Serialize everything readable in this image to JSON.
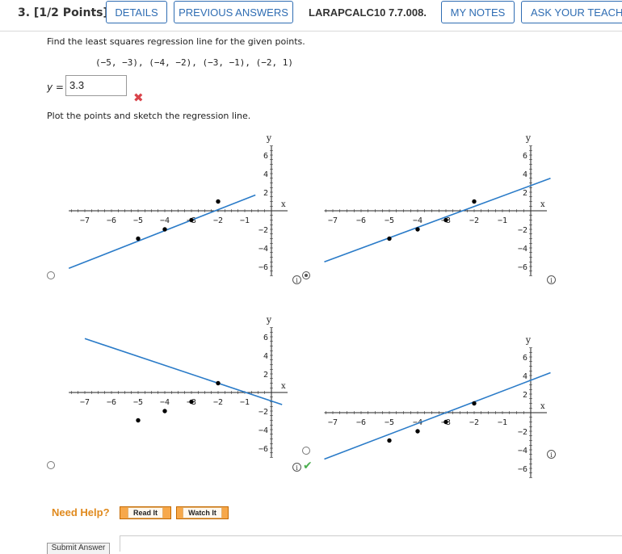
{
  "header": {
    "question_title": "3. [1/2 Points]",
    "details_label": "DETAILS",
    "previous_answers_label": "PREVIOUS ANSWERS",
    "problem_code": "LARAPCALC10 7.7.008.",
    "my_notes_label": "MY NOTES",
    "ask_teacher_label": "ASK YOUR TEACHE"
  },
  "question": {
    "prompt": "Find the least squares regression line for the given points.",
    "points_text": "(−5, −3), (−4, −2), (−3, −1), (−2, 1)",
    "answer_label": "y =",
    "answer_value": "3.3",
    "plot_prompt": "Plot the points and sketch the regression line."
  },
  "help": {
    "need_help_label": "Need Help?",
    "read_it_label": "Read It",
    "watch_it_label": "Watch It"
  },
  "footer": {
    "submit_label": "Submit Answer"
  },
  "graph_common": {
    "x_axis_name": "x",
    "y_axis_name": "y",
    "info_glyph": "i"
  },
  "chart_data": [
    {
      "type": "scatter",
      "id": "top-left",
      "x_ticks": [
        -7,
        -6,
        -5,
        -4,
        -3,
        -2,
        -1
      ],
      "y_ticks": [
        -6,
        -4,
        -2,
        2,
        4,
        6
      ],
      "points": [
        [
          -5,
          -3
        ],
        [
          -4,
          -2
        ],
        [
          -3,
          -1
        ],
        [
          -2,
          1
        ]
      ],
      "line": [
        [
          -7.6,
          -6.2
        ],
        [
          -0.6,
          1.7
        ]
      ],
      "xlim": [
        -7.6,
        0
      ],
      "ylim": [
        -7,
        7
      ],
      "selected": false
    },
    {
      "type": "scatter",
      "id": "top-right",
      "x_ticks": [
        -7,
        -6,
        -5,
        -4,
        -3,
        -2,
        -1
      ],
      "y_ticks": [
        -6,
        -4,
        -2,
        2,
        4,
        6
      ],
      "points": [
        [
          -5,
          -3
        ],
        [
          -4,
          -2
        ],
        [
          -3,
          -1
        ],
        [
          -2,
          1
        ]
      ],
      "line": [
        [
          -7.3,
          -5.5
        ],
        [
          0.7,
          3.5
        ]
      ],
      "xlim": [
        -7.3,
        0
      ],
      "ylim": [
        -7,
        7
      ],
      "selected": true
    },
    {
      "type": "scatter",
      "id": "bottom-left",
      "x_ticks": [
        -7,
        -6,
        -5,
        -4,
        -3,
        -2,
        -1
      ],
      "y_ticks": [
        -6,
        -4,
        -2,
        2,
        4,
        6
      ],
      "points": [
        [
          -5,
          -3
        ],
        [
          -4,
          -2
        ],
        [
          -3,
          -1
        ],
        [
          -2,
          1
        ]
      ],
      "line": [
        [
          -7,
          5.8
        ],
        [
          0.4,
          -1.3
        ]
      ],
      "xlim": [
        -7.6,
        0
      ],
      "ylim": [
        -7,
        7
      ],
      "selected": false
    },
    {
      "type": "scatter",
      "id": "bottom-right",
      "x_ticks": [
        -7,
        -6,
        -5,
        -4,
        -3,
        -2,
        -1
      ],
      "y_ticks": [
        -6,
        -4,
        -2,
        2,
        4,
        6
      ],
      "points": [
        [
          -5,
          -3
        ],
        [
          -4,
          -2
        ],
        [
          -3,
          -1
        ],
        [
          -2,
          1
        ]
      ],
      "line": [
        [
          -7.3,
          -5.0
        ],
        [
          0.7,
          4.3
        ]
      ],
      "xlim": [
        -7.3,
        0
      ],
      "ylim": [
        -7,
        7
      ],
      "selected": false
    }
  ],
  "colors": {
    "line": "#2a7bc8",
    "button_border": "#2f6db3",
    "wrong": "#d9434a",
    "correct": "#4caf50",
    "help": "#e08a1e"
  }
}
